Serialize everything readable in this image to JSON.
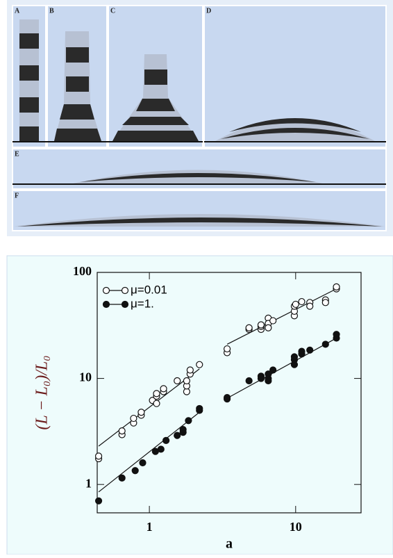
{
  "panels": [
    "A",
    "B",
    "C",
    "D",
    "E",
    "F"
  ],
  "chart_data": {
    "type": "scatter",
    "log_x": true,
    "log_y": true,
    "x_label": "a",
    "y_label": "(L − L₀)/L₀",
    "xlim": [
      0.44,
      28
    ],
    "ylim": [
      0.54,
      100
    ],
    "xticks": [
      1,
      10
    ],
    "yticks": [
      1,
      10,
      100
    ],
    "legend": "top-left",
    "series": [
      {
        "name": "μ=0.01",
        "color": "#111111",
        "marker": "open",
        "x": [
          0.45,
          0.45,
          0.65,
          0.65,
          0.78,
          0.78,
          0.88,
          0.88,
          1.05,
          1.12,
          1.12,
          1.12,
          1.25,
          1.25,
          1.55,
          1.8,
          1.8,
          1.8,
          1.9,
          1.9,
          2.2,
          3.4,
          3.4,
          4.8,
          4.8,
          5.8,
          5.8,
          5.8,
          6.5,
          6.5,
          6.5,
          7,
          9.8,
          9.8,
          9.8,
          10,
          11,
          12.5,
          12.5,
          16,
          16,
          19,
          19
        ],
        "values": [
          1.75,
          1.85,
          2.95,
          3.2,
          3.8,
          4.2,
          4.5,
          4.8,
          6.2,
          5.8,
          6.8,
          7.2,
          7.5,
          8,
          9.5,
          7.5,
          8.5,
          9.5,
          11,
          12,
          13.5,
          17.5,
          19,
          29,
          30,
          29,
          31,
          32,
          37,
          33,
          30,
          35,
          39,
          43,
          48,
          50,
          53,
          52,
          48,
          55,
          52,
          70,
          73
        ],
        "fit": [
          {
            "x": [
              0.45,
              2.2
            ],
            "values": [
              2.3,
              12.3
            ]
          },
          {
            "x": [
              3.4,
              19
            ],
            "values": [
              21,
              70
            ]
          }
        ]
      },
      {
        "name": "μ=1.",
        "color": "#111111",
        "marker": "filled",
        "x": [
          0.45,
          0.65,
          0.8,
          0.9,
          1.1,
          1.2,
          1.3,
          1.55,
          1.7,
          1.7,
          1.85,
          2.2,
          2.2,
          3.4,
          3.4,
          4.8,
          5.8,
          5.8,
          6.5,
          6.5,
          6.5,
          7,
          9.8,
          9.8,
          9.8,
          11,
          11,
          12.5,
          16,
          19,
          19
        ],
        "values": [
          0.7,
          1.15,
          1.35,
          1.6,
          2.05,
          2.15,
          2.6,
          2.9,
          3.1,
          3.3,
          4.0,
          5.0,
          5.2,
          6.4,
          6.6,
          9.5,
          10.5,
          10,
          11,
          9.5,
          10,
          12,
          13.5,
          15,
          16,
          17,
          18,
          18.5,
          21,
          24,
          26
        ],
        "fit": [
          {
            "x": [
              0.45,
              2.2
            ],
            "values": [
              0.85,
              4.8
            ]
          },
          {
            "x": [
              3.4,
              19
            ],
            "values": [
              6.5,
              24
            ]
          }
        ]
      }
    ]
  }
}
